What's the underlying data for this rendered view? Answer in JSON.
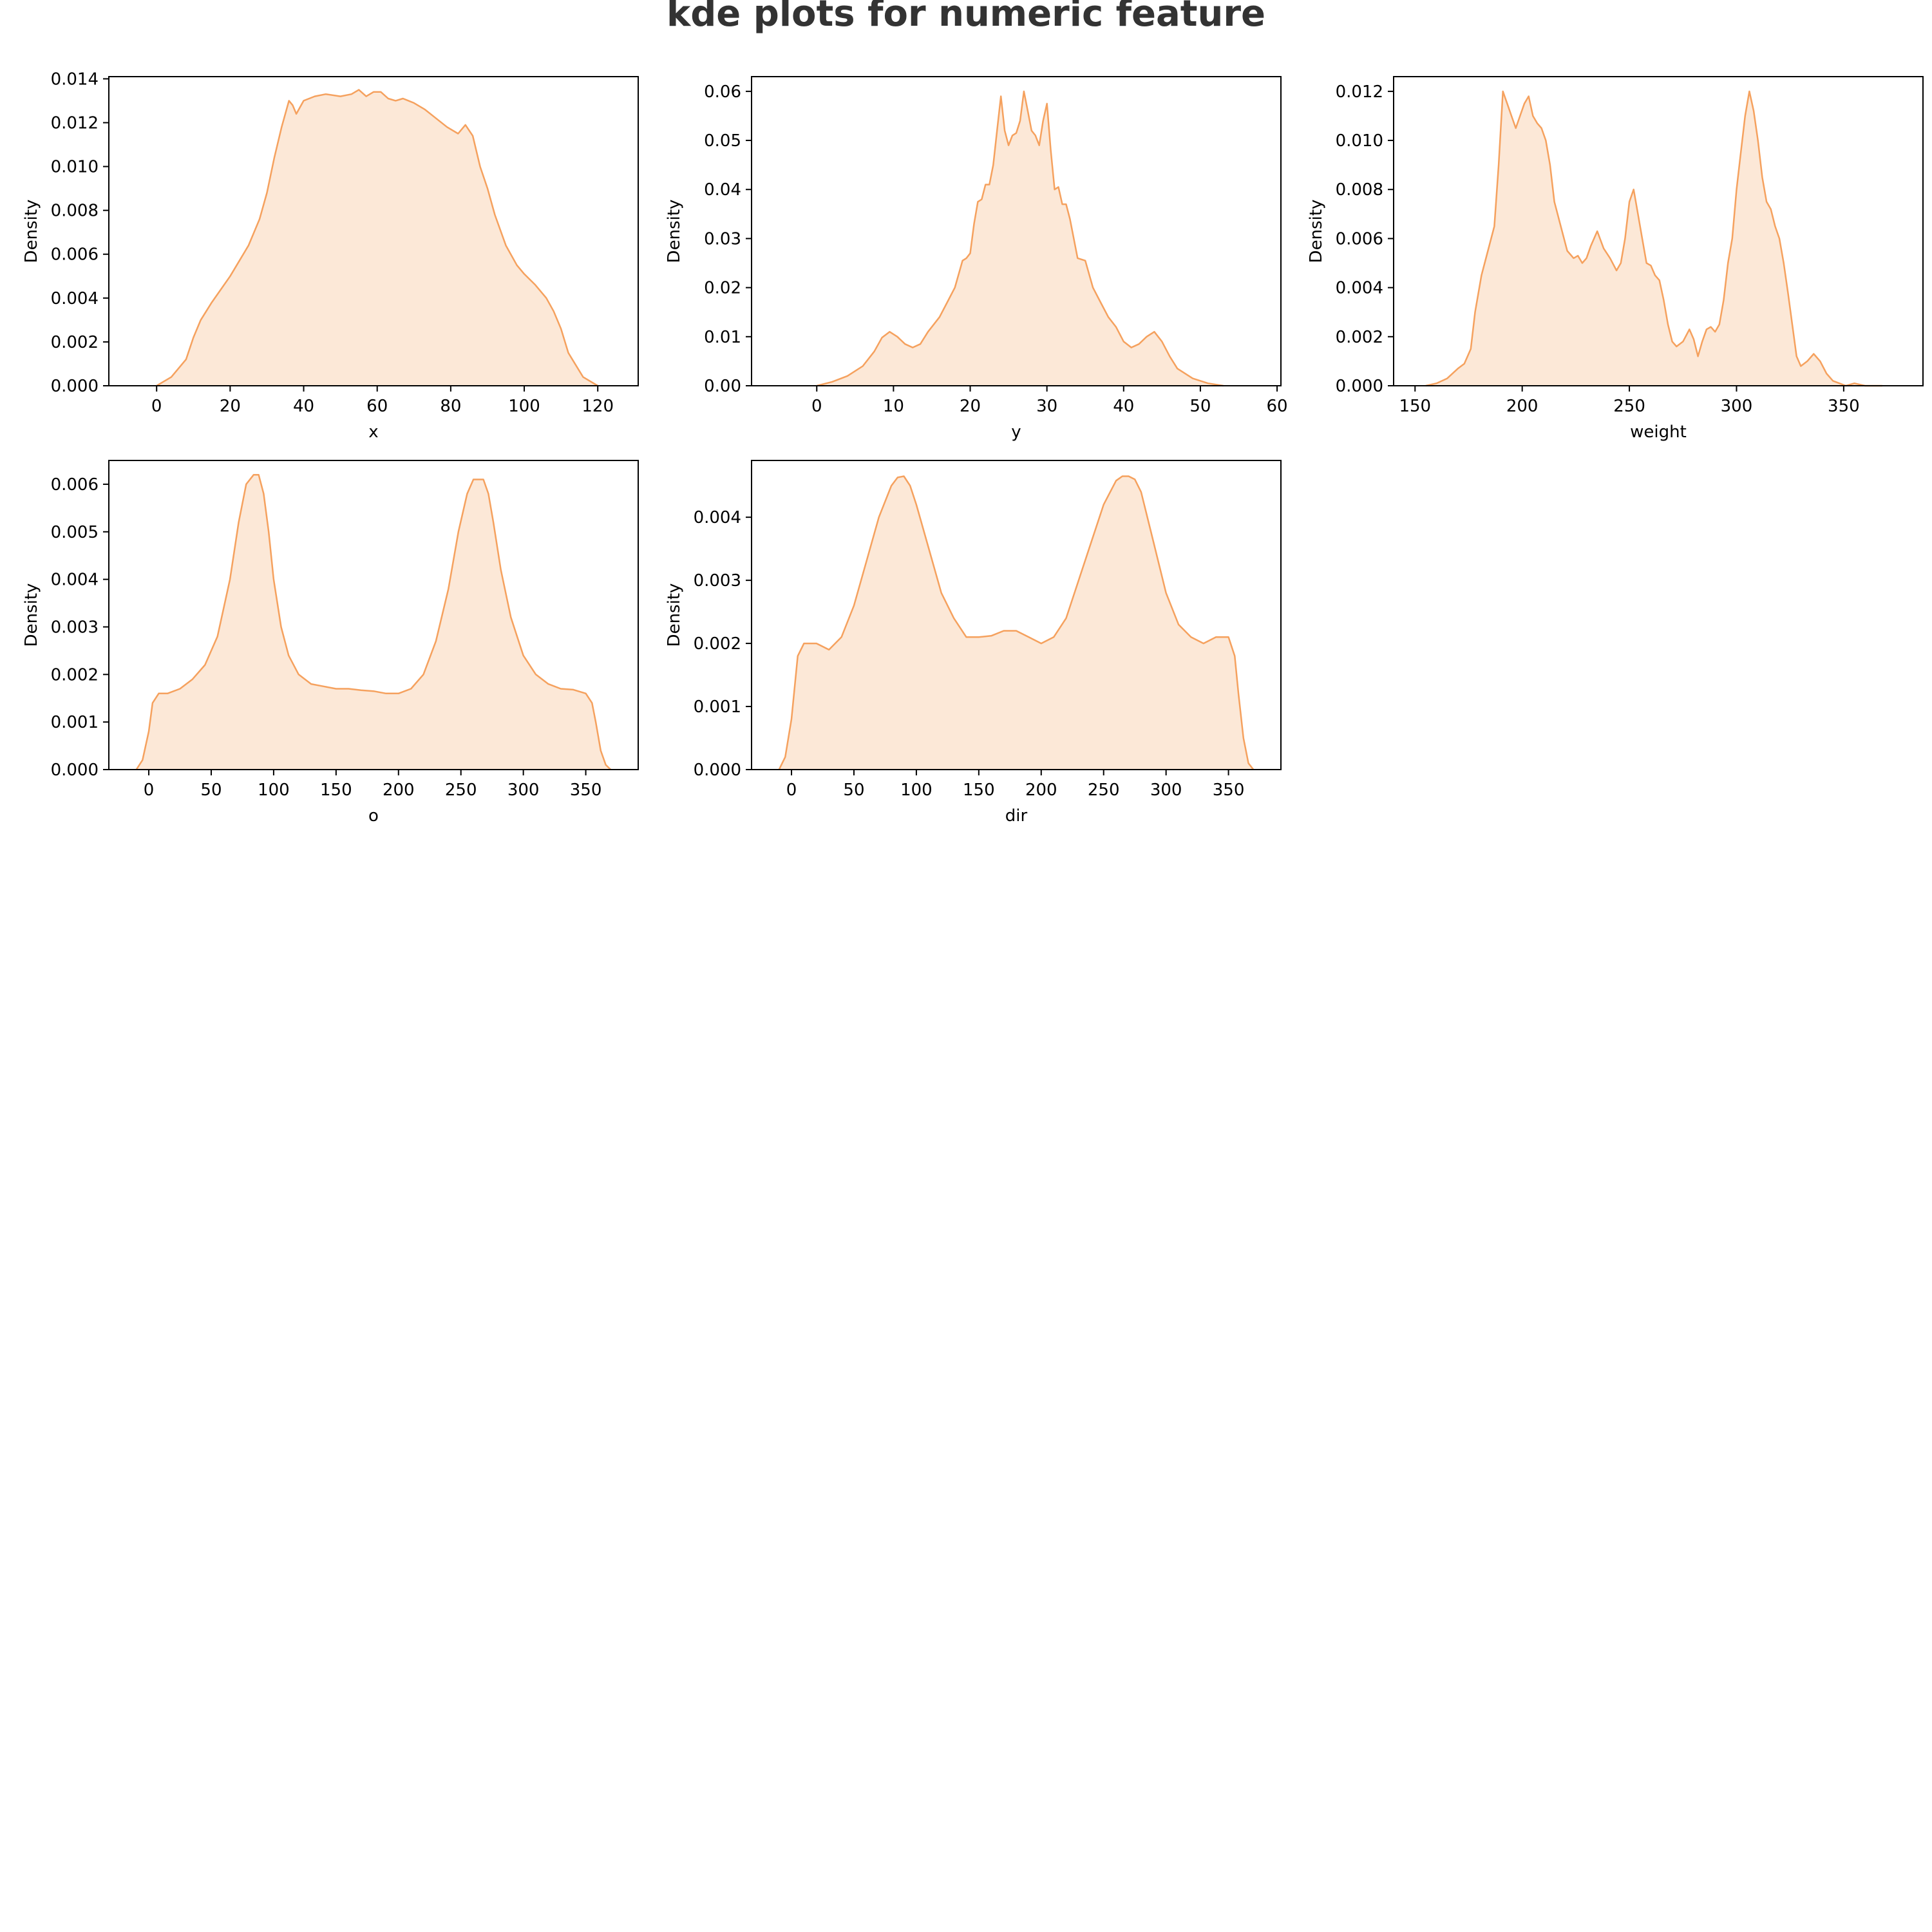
{
  "figure_title": "kde plots for numeric feature",
  "colors": {
    "line": "#F5A15E",
    "fill": "#FCE8D7",
    "axes": "#000000",
    "title": "#333333"
  },
  "chart_data": [
    {
      "type": "area",
      "title": "",
      "xlabel": "x",
      "ylabel": "Density",
      "xlim": [
        -13,
        131
      ],
      "ylim": [
        0,
        0.0141
      ],
      "xticks": [
        0,
        20,
        40,
        60,
        80,
        100,
        120
      ],
      "yticks": [
        0,
        0.002,
        0.004,
        0.006,
        0.008,
        0.01,
        0.012,
        0.014
      ],
      "ytick_decimals": 3,
      "series": [
        {
          "x": [
            0,
            4,
            8,
            10,
            12,
            15,
            20,
            25,
            28,
            30,
            32,
            34,
            36,
            37,
            38,
            40,
            43,
            46,
            50,
            53,
            55,
            57,
            59,
            61,
            63,
            65,
            67,
            70,
            73,
            76,
            79,
            82,
            84,
            86,
            88,
            90,
            92,
            95,
            98,
            100,
            103,
            106,
            108,
            110,
            112,
            116,
            120
          ],
          "y": [
            0,
            0.0004,
            0.0012,
            0.0022,
            0.003,
            0.0038,
            0.005,
            0.0064,
            0.0076,
            0.0088,
            0.0104,
            0.0118,
            0.013,
            0.0128,
            0.0124,
            0.013,
            0.0132,
            0.0133,
            0.0132,
            0.0133,
            0.0135,
            0.0132,
            0.0134,
            0.0134,
            0.0131,
            0.013,
            0.0131,
            0.0129,
            0.0126,
            0.0122,
            0.0118,
            0.0115,
            0.0119,
            0.0114,
            0.01,
            0.009,
            0.0078,
            0.0064,
            0.0055,
            0.0051,
            0.0046,
            0.004,
            0.0034,
            0.0026,
            0.0015,
            0.0004,
            0
          ]
        }
      ]
    },
    {
      "type": "area",
      "title": "",
      "xlabel": "y",
      "ylabel": "Density",
      "xlim": [
        -8.5,
        60.5
      ],
      "ylim": [
        0,
        0.063
      ],
      "xticks": [
        0,
        10,
        20,
        30,
        40,
        50,
        60
      ],
      "yticks": [
        0,
        0.01,
        0.02,
        0.03,
        0.04,
        0.05,
        0.06
      ],
      "ytick_decimals": 2,
      "series": [
        {
          "x": [
            0,
            2,
            4,
            6,
            7.5,
            8.5,
            9.5,
            10.5,
            11.5,
            12.5,
            13.5,
            14.5,
            16,
            17,
            18,
            19,
            19.5,
            20,
            20.5,
            21,
            21.5,
            22,
            22.5,
            23,
            23.5,
            24,
            24.5,
            25,
            25.5,
            26,
            26.5,
            27,
            27.5,
            28,
            28.5,
            29,
            29.5,
            30,
            30.5,
            31,
            31.5,
            32,
            32.5,
            33,
            34,
            35,
            36,
            37,
            38,
            39,
            40,
            41,
            42,
            43,
            44,
            45,
            46,
            47,
            49,
            51,
            53
          ],
          "y": [
            0,
            0.0008,
            0.002,
            0.004,
            0.007,
            0.0098,
            0.011,
            0.01,
            0.0085,
            0.0078,
            0.0085,
            0.011,
            0.014,
            0.017,
            0.02,
            0.0255,
            0.026,
            0.027,
            0.033,
            0.0375,
            0.038,
            0.041,
            0.041,
            0.045,
            0.052,
            0.059,
            0.052,
            0.049,
            0.051,
            0.0515,
            0.054,
            0.06,
            0.056,
            0.052,
            0.051,
            0.049,
            0.054,
            0.0575,
            0.048,
            0.04,
            0.0405,
            0.037,
            0.037,
            0.034,
            0.026,
            0.0255,
            0.02,
            0.017,
            0.014,
            0.012,
            0.009,
            0.0078,
            0.0085,
            0.01,
            0.011,
            0.009,
            0.006,
            0.0035,
            0.0015,
            0.0005,
            0
          ]
        }
      ]
    },
    {
      "type": "area",
      "title": "",
      "xlabel": "weight",
      "ylabel": "Density",
      "xlim": [
        140,
        387
      ],
      "ylim": [
        0,
        0.0126
      ],
      "xticks": [
        150,
        200,
        250,
        300,
        350
      ],
      "yticks": [
        0,
        0.002,
        0.004,
        0.006,
        0.008,
        0.01,
        0.012
      ],
      "ytick_decimals": 3,
      "series": [
        {
          "x": [
            155,
            160,
            165,
            170,
            173,
            176,
            178,
            181,
            184,
            187,
            189,
            191,
            193,
            195,
            197,
            199,
            201,
            203,
            205,
            207,
            209,
            211,
            213,
            215,
            218,
            221,
            224,
            226,
            228,
            230,
            232,
            235,
            238,
            241,
            244,
            246,
            248,
            250,
            252,
            254,
            256,
            258,
            260,
            262,
            264,
            266,
            268,
            270,
            272,
            275,
            278,
            280,
            282,
            284,
            286,
            288,
            290,
            292,
            294,
            296,
            298,
            300,
            302,
            304,
            306,
            308,
            310,
            312,
            314,
            316,
            318,
            320,
            322,
            324,
            326,
            328,
            330,
            333,
            336,
            339,
            342,
            345,
            348,
            351,
            355,
            360,
            365,
            368
          ],
          "y": [
            0,
            0.0001,
            0.0003,
            0.0007,
            0.0009,
            0.0015,
            0.003,
            0.0045,
            0.0055,
            0.0065,
            0.009,
            0.012,
            0.0115,
            0.011,
            0.0105,
            0.011,
            0.0115,
            0.0118,
            0.011,
            0.0107,
            0.0105,
            0.01,
            0.009,
            0.0075,
            0.0065,
            0.0055,
            0.0052,
            0.0053,
            0.005,
            0.0052,
            0.0057,
            0.0063,
            0.0056,
            0.0052,
            0.0047,
            0.005,
            0.006,
            0.0075,
            0.008,
            0.007,
            0.006,
            0.005,
            0.0049,
            0.0045,
            0.0043,
            0.0035,
            0.0025,
            0.0018,
            0.0016,
            0.0018,
            0.0023,
            0.0019,
            0.0012,
            0.0018,
            0.0023,
            0.0024,
            0.0022,
            0.0025,
            0.0035,
            0.005,
            0.006,
            0.008,
            0.0095,
            0.011,
            0.012,
            0.0112,
            0.01,
            0.0085,
            0.0075,
            0.0072,
            0.0065,
            0.006,
            0.005,
            0.0038,
            0.0025,
            0.0012,
            0.0008,
            0.001,
            0.0013,
            0.001,
            0.0005,
            0.0002,
            0.0001,
            0.0,
            0.0001,
            0.0,
            0.0,
            0.0
          ]
        }
      ]
    },
    {
      "type": "area",
      "title": "",
      "xlabel": "o",
      "ylabel": "Density",
      "xlim": [
        -32,
        392
      ],
      "ylim": [
        0,
        0.0065
      ],
      "xticks": [
        0,
        50,
        100,
        150,
        200,
        250,
        300,
        350
      ],
      "yticks": [
        0,
        0.001,
        0.002,
        0.003,
        0.004,
        0.005,
        0.006
      ],
      "ytick_decimals": 3,
      "series": [
        {
          "x": [
            -10,
            -5,
            0,
            3,
            8,
            15,
            25,
            35,
            45,
            55,
            65,
            72,
            78,
            84,
            88,
            92,
            96,
            100,
            106,
            112,
            120,
            130,
            140,
            150,
            160,
            170,
            180,
            190,
            200,
            210,
            220,
            230,
            240,
            248,
            255,
            260,
            265,
            268,
            272,
            276,
            282,
            290,
            300,
            310,
            320,
            330,
            340,
            350,
            355,
            358,
            362,
            366,
            370
          ],
          "y": [
            0,
            0.0002,
            0.0008,
            0.0014,
            0.0016,
            0.0016,
            0.0017,
            0.0019,
            0.0022,
            0.0028,
            0.004,
            0.0052,
            0.006,
            0.0062,
            0.0062,
            0.0058,
            0.005,
            0.004,
            0.003,
            0.0024,
            0.002,
            0.0018,
            0.00175,
            0.0017,
            0.0017,
            0.00167,
            0.00165,
            0.0016,
            0.0016,
            0.0017,
            0.002,
            0.0027,
            0.0038,
            0.005,
            0.0058,
            0.0061,
            0.0061,
            0.0061,
            0.0058,
            0.0052,
            0.0042,
            0.0032,
            0.0024,
            0.002,
            0.0018,
            0.0017,
            0.00168,
            0.0016,
            0.0014,
            0.001,
            0.0004,
            0.0001,
            0
          ]
        }
      ]
    },
    {
      "type": "area",
      "title": "",
      "xlabel": "dir",
      "ylabel": "Density",
      "xlim": [
        -32,
        392
      ],
      "ylim": [
        0,
        0.0049
      ],
      "xticks": [
        0,
        50,
        100,
        150,
        200,
        250,
        300,
        350
      ],
      "yticks": [
        0,
        0.001,
        0.002,
        0.003,
        0.004
      ],
      "ytick_decimals": 3,
      "series": [
        {
          "x": [
            -10,
            -5,
            0,
            5,
            10,
            20,
            30,
            40,
            50,
            60,
            70,
            80,
            85,
            90,
            95,
            100,
            110,
            120,
            130,
            140,
            150,
            160,
            170,
            180,
            190,
            200,
            210,
            220,
            230,
            240,
            250,
            260,
            265,
            270,
            275,
            280,
            290,
            300,
            310,
            320,
            330,
            340,
            350,
            355,
            358,
            362,
            366,
            370
          ],
          "y": [
            0,
            0.0002,
            0.0008,
            0.0018,
            0.002,
            0.002,
            0.0019,
            0.0021,
            0.0026,
            0.0033,
            0.004,
            0.0045,
            0.00463,
            0.00465,
            0.0045,
            0.0042,
            0.0035,
            0.0028,
            0.0024,
            0.0021,
            0.0021,
            0.00212,
            0.0022,
            0.0022,
            0.0021,
            0.002,
            0.0021,
            0.0024,
            0.003,
            0.0036,
            0.0042,
            0.00458,
            0.00465,
            0.00465,
            0.0046,
            0.0044,
            0.0036,
            0.0028,
            0.0023,
            0.0021,
            0.002,
            0.0021,
            0.0021,
            0.0018,
            0.0012,
            0.0005,
            0.0001,
            0
          ]
        }
      ]
    }
  ]
}
